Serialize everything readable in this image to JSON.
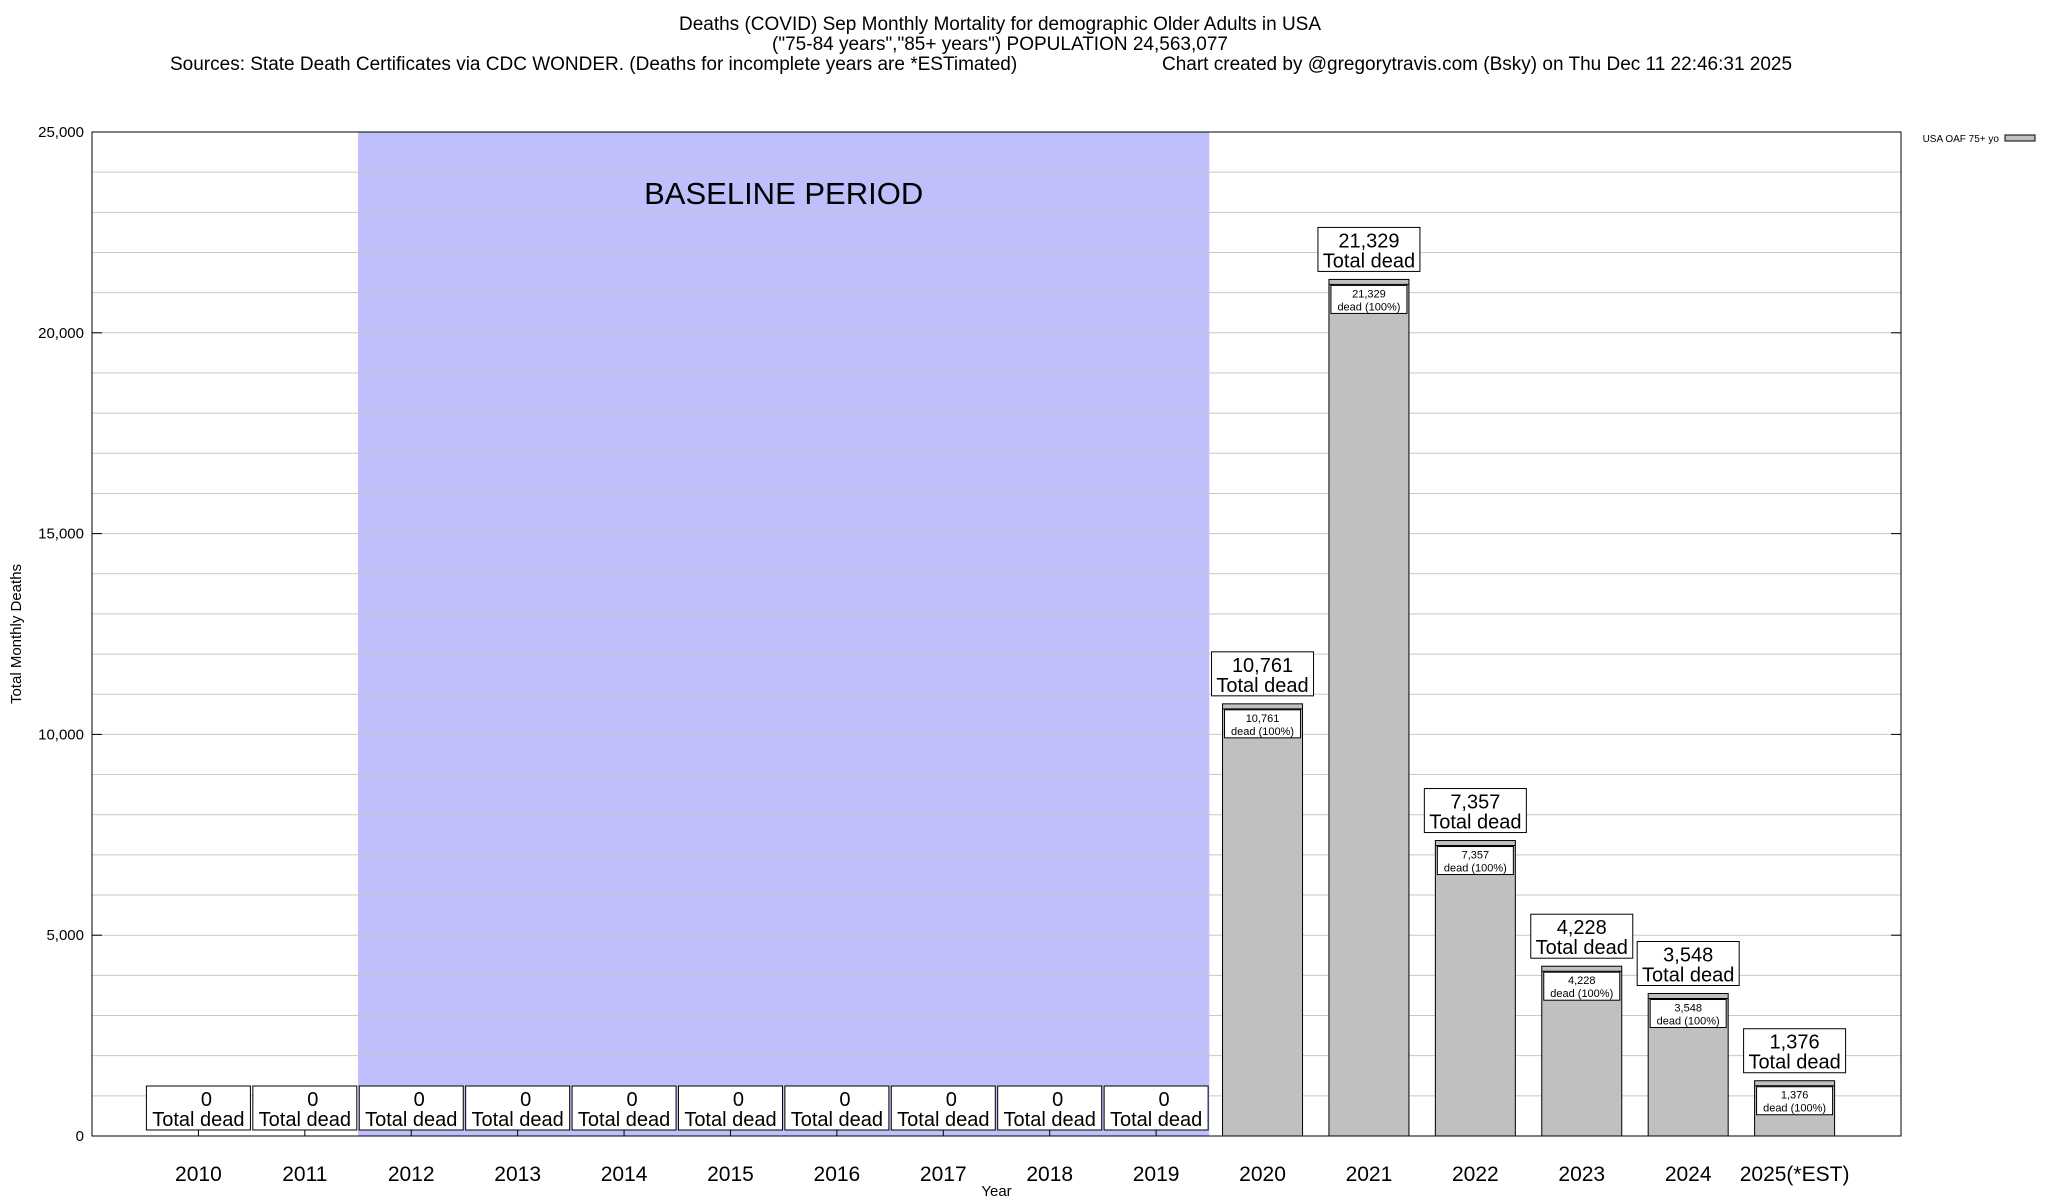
{
  "header": {
    "title": "Deaths (COVID) Sep Monthly Mortality for demographic Older Adults in USA",
    "subtitle": "(\"75-84 years\",\"85+ years\") POPULATION 24,563,077",
    "sources": "Sources: State Death Certificates via CDC WONDER. (Deaths for incomplete years are *ESTimated)",
    "credit": "Chart created by @gregorytravis.com (Bsky) on Thu Dec 11 22:46:31 2025"
  },
  "chart_data": {
    "type": "bar",
    "categories": [
      "2010",
      "2011",
      "2012",
      "2013",
      "2014",
      "2015",
      "2016",
      "2017",
      "2018",
      "2019",
      "2020",
      "2021",
      "2022",
      "2023",
      "2024",
      "2025(*EST)"
    ],
    "series": [
      {
        "name": "USA OAF 75+ yo",
        "values": [
          0,
          0,
          0,
          0,
          0,
          0,
          0,
          0,
          0,
          0,
          10761,
          21329,
          7357,
          4228,
          3548,
          1376
        ],
        "value_labels": [
          "0",
          "0",
          "0",
          "0",
          "0",
          "0",
          "0",
          "0",
          "0",
          "0",
          "10,761",
          "21,329",
          "7,357",
          "4,228",
          "3,548",
          "1,376"
        ]
      }
    ],
    "total_label_suffix": "Total dead",
    "inner_label_suffix": "dead (100%)",
    "xlabel": "Year",
    "ylabel": "Total Monthly Deaths",
    "ylim": [
      0,
      25000
    ],
    "y_ticks": [
      0,
      5000,
      10000,
      15000,
      20000,
      25000
    ],
    "y_tick_labels": [
      "0",
      "5,000",
      "10,000",
      "15,000",
      "20,000",
      "25,000"
    ],
    "y_minor_step": 1000,
    "grid": true,
    "legend_position": "top-right",
    "baseline_period": {
      "label": "BASELINE PERIOD",
      "from_category": "2012",
      "to_category": "2019",
      "color": "#bfbffb"
    },
    "colors": {
      "bar_fill": "#c0c0c0",
      "bar_stroke": "#000000",
      "grid": "#c8c8c8"
    }
  }
}
